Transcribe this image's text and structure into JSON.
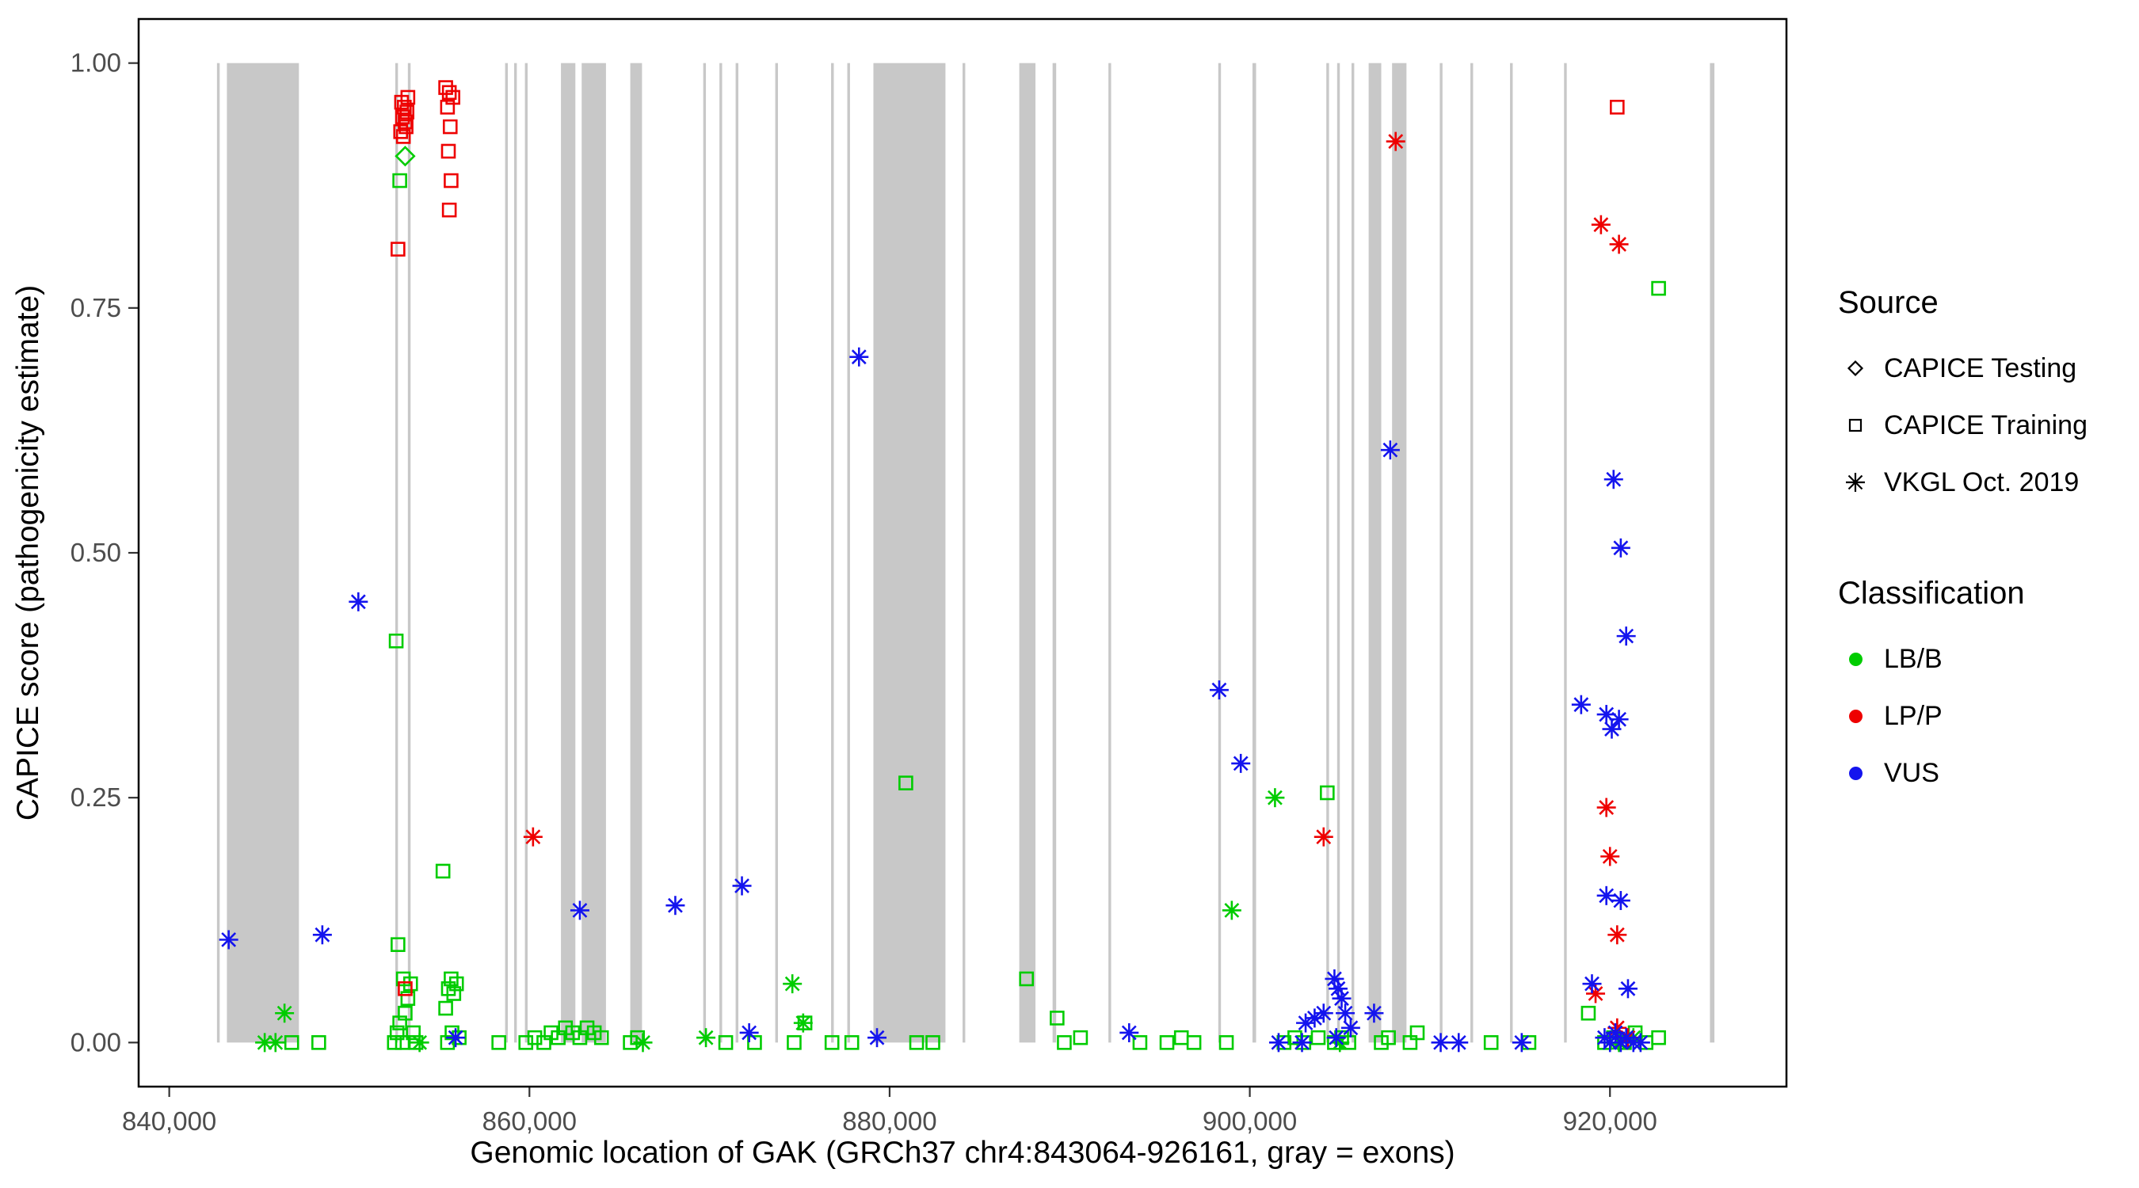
{
  "figure": {
    "background": "#ffffff",
    "panel_border_color": "#000000",
    "tick_label_color": "#4d4d4d",
    "axis_title_color": "#000000"
  },
  "legend": {
    "source": {
      "title": "Source",
      "items": [
        {
          "label": "CAPICE Testing",
          "marker": "diamond-icon"
        },
        {
          "label": "CAPICE Training",
          "marker": "square-icon"
        },
        {
          "label": "VKGL Oct. 2019",
          "marker": "asterisk-icon"
        }
      ]
    },
    "classification": {
      "title": "Classification",
      "items": [
        {
          "label": "LB/B",
          "color": "#00CC00"
        },
        {
          "label": "LP/P",
          "color": "#EE0000"
        },
        {
          "label": "VUS",
          "color": "#1414EE"
        }
      ]
    }
  },
  "chart_data": {
    "type": "scatter",
    "title": "",
    "xlabel": "Genomic location of GAK (GRCh37 chr4:843064-926161, gray = exons)",
    "ylabel": "CAPICE score (pathogenicity estimate)",
    "xlim": [
      838300,
      929800
    ],
    "ylim": [
      -0.045,
      1.045
    ],
    "x_ticks": [
      840000,
      860000,
      880000,
      900000,
      920000
    ],
    "x_tick_labels": [
      "840,000",
      "860,000",
      "880,000",
      "900,000",
      "920,000"
    ],
    "y_ticks": [
      0,
      0.25,
      0.5,
      0.75,
      1.0
    ],
    "y_tick_labels": [
      "0.00",
      "0.25",
      "0.50",
      "0.75",
      "1.00"
    ],
    "grid": false,
    "legend_position": "right",
    "exon_color": "#c8c8c8",
    "exons": [
      [
        842650,
        842800
      ],
      [
        843200,
        847200
      ],
      [
        852550,
        852700
      ],
      [
        853250,
        853400
      ],
      [
        858650,
        858800
      ],
      [
        859150,
        859300
      ],
      [
        859750,
        859900
      ],
      [
        861750,
        862550
      ],
      [
        862900,
        864250
      ],
      [
        865600,
        866250
      ],
      [
        869650,
        869800
      ],
      [
        870550,
        870700
      ],
      [
        871450,
        871600
      ],
      [
        873650,
        873800
      ],
      [
        876750,
        876900
      ],
      [
        877650,
        877800
      ],
      [
        879100,
        883100
      ],
      [
        884050,
        884200
      ],
      [
        887200,
        888100
      ],
      [
        889050,
        889250
      ],
      [
        892150,
        892300
      ],
      [
        898250,
        898400
      ],
      [
        900150,
        900350
      ],
      [
        904250,
        904400
      ],
      [
        904850,
        905000
      ],
      [
        905650,
        905800
      ],
      [
        906600,
        907300
      ],
      [
        907900,
        908700
      ],
      [
        910550,
        910700
      ],
      [
        912250,
        912400
      ],
      [
        914450,
        914600
      ],
      [
        917450,
        917600
      ],
      [
        925550,
        925800
      ]
    ],
    "series": [
      {
        "name": "CAPICE Testing / LB/B",
        "source": "CAPICE Testing",
        "classification": "LB/B",
        "marker": "diamond",
        "color": "#00CC00",
        "points": [
          [
            853100,
            0.905
          ]
        ]
      },
      {
        "name": "CAPICE Training / LB/B",
        "source": "CAPICE Training",
        "classification": "LB/B",
        "marker": "square",
        "color": "#00CC00",
        "points": [
          [
            846800,
            0.0
          ],
          [
            848300,
            0.0
          ],
          [
            852500,
            0.0
          ],
          [
            852650,
            0.01
          ],
          [
            852800,
            0.02
          ],
          [
            852950,
            0.0
          ],
          [
            853100,
            0.03
          ],
          [
            853250,
            0.045
          ],
          [
            853400,
            0.06
          ],
          [
            853550,
            0.01
          ],
          [
            853700,
            0.0
          ],
          [
            852700,
            0.1
          ],
          [
            853000,
            0.065
          ],
          [
            852600,
            0.41
          ],
          [
            852800,
            0.88
          ],
          [
            855200,
            0.175
          ],
          [
            855350,
            0.035
          ],
          [
            855500,
            0.055
          ],
          [
            855650,
            0.065
          ],
          [
            855800,
            0.05
          ],
          [
            855950,
            0.06
          ],
          [
            855450,
            0.0
          ],
          [
            855700,
            0.01
          ],
          [
            856100,
            0.005
          ],
          [
            858300,
            0.0
          ],
          [
            859800,
            0.0
          ],
          [
            860300,
            0.005
          ],
          [
            860800,
            0.0
          ],
          [
            861200,
            0.01
          ],
          [
            861600,
            0.005
          ],
          [
            862000,
            0.015
          ],
          [
            862400,
            0.01
          ],
          [
            862800,
            0.005
          ],
          [
            863200,
            0.015
          ],
          [
            863600,
            0.01
          ],
          [
            864000,
            0.005
          ],
          [
            865600,
            0.0
          ],
          [
            866000,
            0.005
          ],
          [
            870900,
            0.0
          ],
          [
            872500,
            0.0
          ],
          [
            874700,
            0.0
          ],
          [
            875300,
            0.02
          ],
          [
            876800,
            0.0
          ],
          [
            877900,
            0.0
          ],
          [
            880900,
            0.265
          ],
          [
            881500,
            0.0
          ],
          [
            882400,
            0.0
          ],
          [
            887600,
            0.065
          ],
          [
            889300,
            0.025
          ],
          [
            889700,
            0.0
          ],
          [
            890600,
            0.005
          ],
          [
            893900,
            0.0
          ],
          [
            895400,
            0.0
          ],
          [
            896200,
            0.005
          ],
          [
            896900,
            0.0
          ],
          [
            898700,
            0.0
          ],
          [
            901900,
            0.0
          ],
          [
            902500,
            0.005
          ],
          [
            903000,
            0.0
          ],
          [
            903800,
            0.005
          ],
          [
            904300,
            0.255
          ],
          [
            904700,
            0.0
          ],
          [
            905100,
            0.005
          ],
          [
            905500,
            0.0
          ],
          [
            907300,
            0.0
          ],
          [
            907700,
            0.005
          ],
          [
            908900,
            0.0
          ],
          [
            909300,
            0.01
          ],
          [
            913400,
            0.0
          ],
          [
            915500,
            0.0
          ],
          [
            918800,
            0.03
          ],
          [
            919700,
            0.0
          ],
          [
            920200,
            0.005
          ],
          [
            920800,
            0.0
          ],
          [
            921400,
            0.01
          ],
          [
            922000,
            0.0
          ],
          [
            922700,
            0.005
          ],
          [
            922700,
            0.77
          ]
        ]
      },
      {
        "name": "CAPICE Training / LP/P",
        "source": "CAPICE Training",
        "classification": "LP/P",
        "marker": "square",
        "color": "#EE0000",
        "points": [
          [
            852700,
            0.81
          ],
          [
            852850,
            0.93
          ],
          [
            852950,
            0.945
          ],
          [
            853050,
            0.955
          ],
          [
            853150,
            0.935
          ],
          [
            853250,
            0.965
          ],
          [
            852900,
            0.96
          ],
          [
            853000,
            0.925
          ],
          [
            853100,
            0.94
          ],
          [
            853200,
            0.95
          ],
          [
            855350,
            0.975
          ],
          [
            855550,
            0.97
          ],
          [
            855750,
            0.965
          ],
          [
            855450,
            0.955
          ],
          [
            855600,
            0.935
          ],
          [
            855500,
            0.91
          ],
          [
            855650,
            0.88
          ],
          [
            855550,
            0.85
          ],
          [
            853100,
            0.055
          ],
          [
            920400,
            0.955
          ]
        ]
      },
      {
        "name": "VKGL Oct. 2019 / LB/B",
        "source": "VKGL Oct. 2019",
        "classification": "LB/B",
        "marker": "asterisk",
        "color": "#00CC00",
        "points": [
          [
            845300,
            0.0
          ],
          [
            846400,
            0.03
          ],
          [
            845900,
            0.0
          ],
          [
            853900,
            0.0
          ],
          [
            866300,
            0.0
          ],
          [
            869800,
            0.005
          ],
          [
            874600,
            0.06
          ],
          [
            875200,
            0.02
          ],
          [
            899000,
            0.135
          ],
          [
            901400,
            0.25
          ],
          [
            905000,
            0.0
          ],
          [
            920500,
            0.0
          ],
          [
            921300,
            0.005
          ]
        ]
      },
      {
        "name": "VKGL Oct. 2019 / LP/P",
        "source": "VKGL Oct. 2019",
        "classification": "LP/P",
        "marker": "asterisk",
        "color": "#EE0000",
        "points": [
          [
            860200,
            0.21
          ],
          [
            904100,
            0.21
          ],
          [
            908100,
            0.92
          ],
          [
            919500,
            0.835
          ],
          [
            920500,
            0.815
          ],
          [
            919800,
            0.24
          ],
          [
            920000,
            0.19
          ],
          [
            920400,
            0.11
          ],
          [
            919200,
            0.05
          ],
          [
            920400,
            0.015
          ],
          [
            921000,
            0.005
          ]
        ]
      },
      {
        "name": "VKGL Oct. 2019 / VUS",
        "source": "VKGL Oct. 2019",
        "classification": "VUS",
        "marker": "asterisk",
        "color": "#1414EE",
        "points": [
          [
            843300,
            0.105
          ],
          [
            848500,
            0.11
          ],
          [
            850500,
            0.45
          ],
          [
            855900,
            0.005
          ],
          [
            862800,
            0.135
          ],
          [
            868100,
            0.14
          ],
          [
            871800,
            0.16
          ],
          [
            872200,
            0.01
          ],
          [
            878300,
            0.7
          ],
          [
            879300,
            0.005
          ],
          [
            893300,
            0.01
          ],
          [
            898300,
            0.36
          ],
          [
            899500,
            0.285
          ],
          [
            903100,
            0.02
          ],
          [
            903600,
            0.025
          ],
          [
            904100,
            0.03
          ],
          [
            904700,
            0.065
          ],
          [
            904900,
            0.055
          ],
          [
            905100,
            0.045
          ],
          [
            905300,
            0.03
          ],
          [
            905600,
            0.015
          ],
          [
            904800,
            0.005
          ],
          [
            906900,
            0.03
          ],
          [
            907800,
            0.605
          ],
          [
            901600,
            0.0
          ],
          [
            902900,
            0.0
          ],
          [
            910600,
            0.0
          ],
          [
            911600,
            0.0
          ],
          [
            915100,
            0.0
          ],
          [
            918400,
            0.345
          ],
          [
            919800,
            0.335
          ],
          [
            920500,
            0.33
          ],
          [
            920100,
            0.32
          ],
          [
            920200,
            0.575
          ],
          [
            920600,
            0.505
          ],
          [
            920900,
            0.415
          ],
          [
            919800,
            0.15
          ],
          [
            920600,
            0.145
          ],
          [
            919000,
            0.06
          ],
          [
            921000,
            0.055
          ],
          [
            919700,
            0.005
          ],
          [
            920000,
            0.0
          ],
          [
            920300,
            0.01
          ],
          [
            920600,
            0.0
          ],
          [
            920900,
            0.005
          ],
          [
            921300,
            0.0
          ],
          [
            921700,
            0.0
          ]
        ]
      }
    ]
  }
}
